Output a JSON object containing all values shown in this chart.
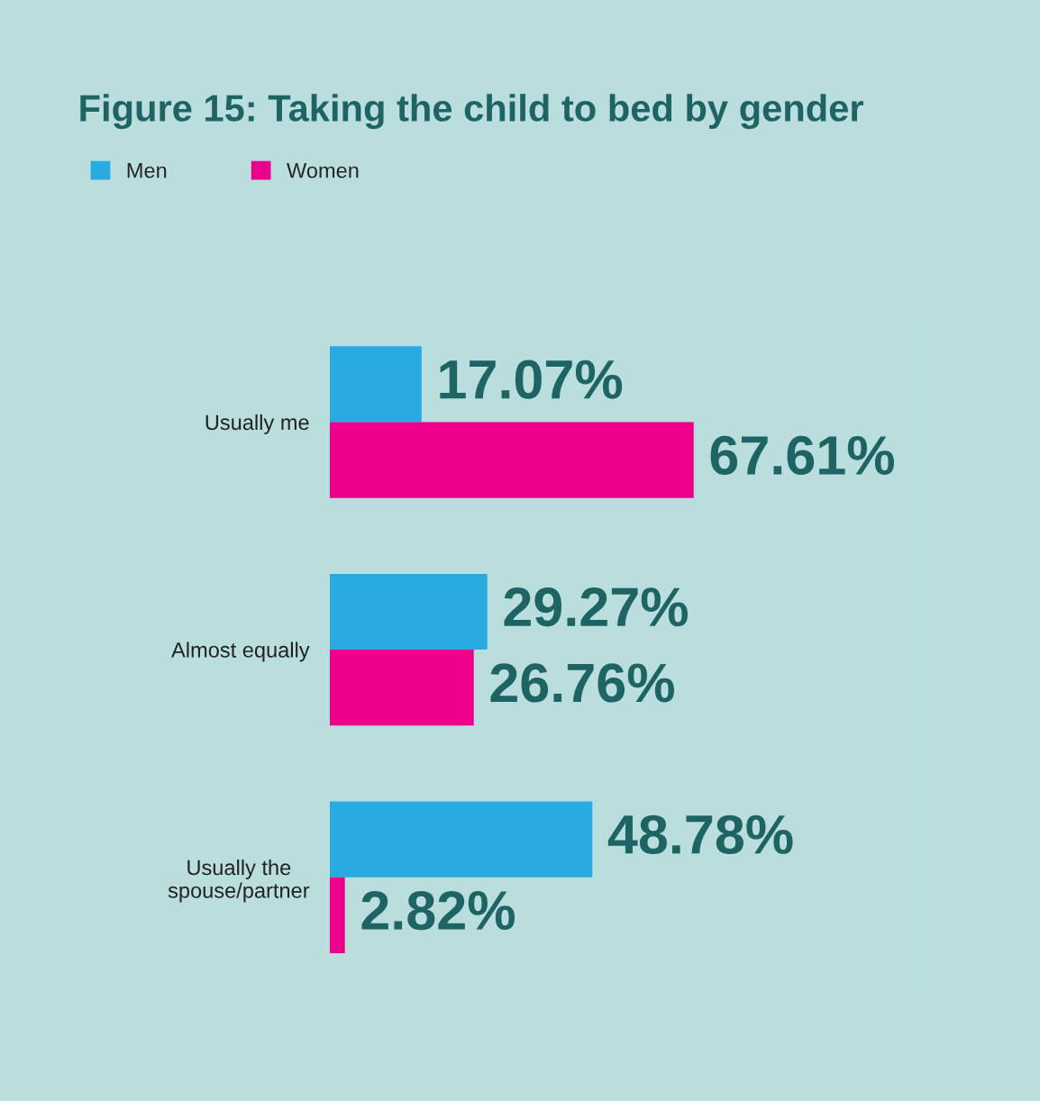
{
  "chart_data": {
    "type": "bar",
    "orientation": "horizontal",
    "title": "Figure 15: Taking the child to bed by gender",
    "categories": [
      "Usually me",
      "Almost equally",
      "Usually the\nspouse/partner"
    ],
    "series": [
      {
        "name": "Men",
        "color": "#29abe2",
        "values": [
          17.07,
          29.27,
          48.78
        ],
        "value_labels": [
          "17.07%",
          "29.27%",
          "48.78%"
        ]
      },
      {
        "name": "Women",
        "color": "#ec008c",
        "values": [
          67.61,
          26.76,
          2.82
        ],
        "value_labels": [
          "67.61%",
          "26.76%",
          "2.82%"
        ]
      }
    ],
    "legend": "top left",
    "grid": false
  }
}
